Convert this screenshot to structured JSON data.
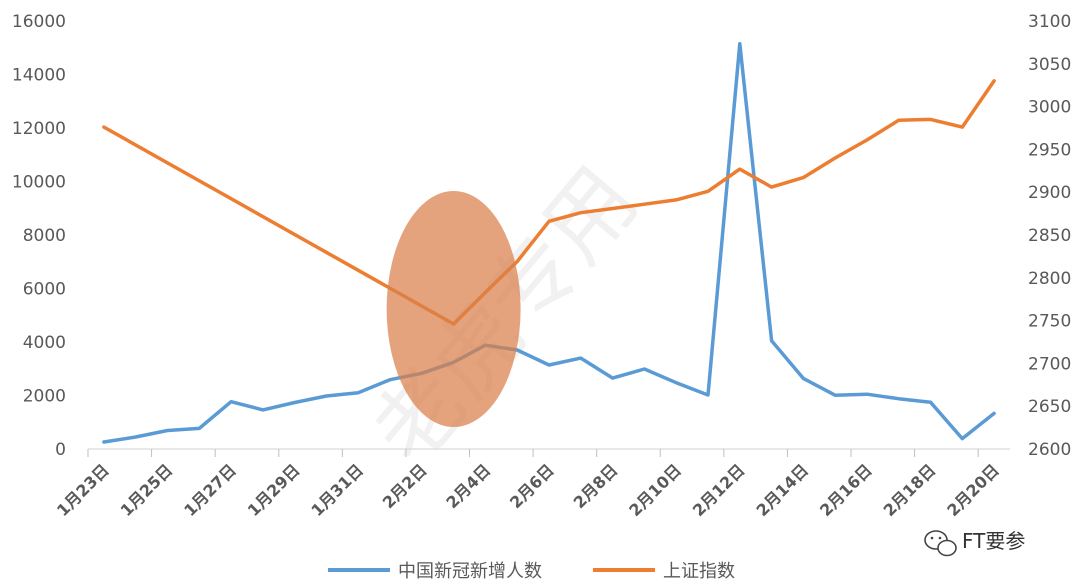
{
  "chart_data": {
    "type": "line",
    "categories": [
      "1月23日",
      "1月24日",
      "1月25日",
      "1月26日",
      "1月27日",
      "1月28日",
      "1月29日",
      "1月30日",
      "1月31日",
      "2月1日",
      "2月2日",
      "2月3日",
      "2月4日",
      "2月5日",
      "2月6日",
      "2月7日",
      "2月8日",
      "2月9日",
      "2月10日",
      "2月11日",
      "2月12日",
      "2月13日",
      "2月14日",
      "2月15日",
      "2月16日",
      "2月17日",
      "2月18日",
      "2月19日",
      "2月20日"
    ],
    "x_tick_labels": [
      "1月23日",
      "1月25日",
      "1月27日",
      "1月29日",
      "1月31日",
      "2月2日",
      "2月4日",
      "2月6日",
      "2月8日",
      "2月10日",
      "2月12日",
      "2月14日",
      "2月16日",
      "2月18日",
      "2月20日"
    ],
    "series": [
      {
        "name": "中国新冠新增人数",
        "axis": "left",
        "color": "#5b9bd5",
        "values": [
          260,
          450,
          690,
          770,
          1770,
          1460,
          1740,
          1980,
          2100,
          2590,
          2830,
          3240,
          3880,
          3700,
          3140,
          3400,
          2650,
          2990,
          2480,
          2020,
          15150,
          4050,
          2640,
          2010,
          2050,
          1880,
          1750,
          390,
          1330
        ]
      },
      {
        "name": "上证指数",
        "axis": "right",
        "color": "#ed7d31",
        "values": [
          2976,
          null,
          null,
          null,
          null,
          null,
          null,
          null,
          null,
          null,
          null,
          2746,
          2783,
          2819,
          2866,
          2876,
          2881,
          2886,
          2891,
          2901,
          2927,
          2906,
          2917,
          2940,
          2961,
          2984,
          2985,
          2976,
          3030
        ]
      }
    ],
    "ylim_left": [
      0,
      16000
    ],
    "yticks_left": [
      "0",
      "2000",
      "4000",
      "6000",
      "8000",
      "10000",
      "12000",
      "14000",
      "16000"
    ],
    "ylim_right": [
      2600,
      3100
    ],
    "yticks_right": [
      "2600",
      "2650",
      "2700",
      "2750",
      "2800",
      "2850",
      "2900",
      "2950",
      "3000",
      "3050",
      "3100"
    ],
    "legend_position": "bottom",
    "annotation": {
      "shape": "ellipse",
      "color": "#d9804a",
      "center_category": "2月3日"
    }
  },
  "watermark": "老虎专用",
  "source_tag": "FT要参"
}
